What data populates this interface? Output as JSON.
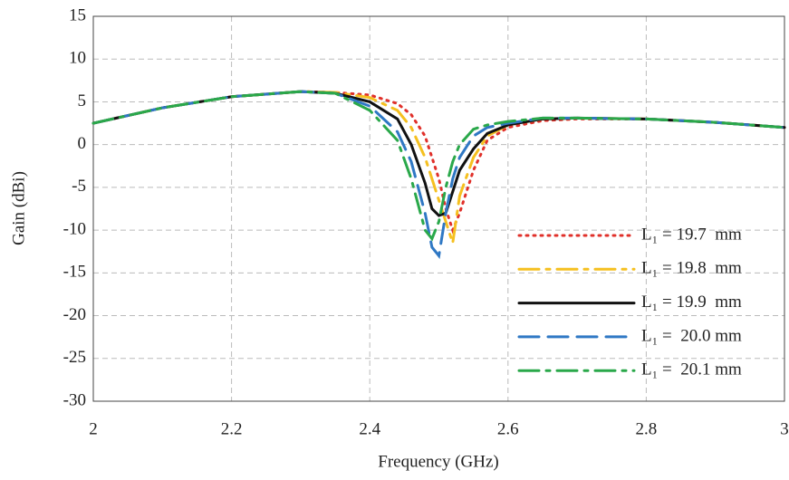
{
  "chart_data": {
    "type": "line",
    "xlabel": "Frequency (GHz)",
    "ylabel": "Gain (dBi)",
    "x": [
      2,
      2.1,
      2.2,
      2.3,
      2.35,
      2.4,
      2.44,
      2.46,
      2.48,
      2.49,
      2.5,
      2.51,
      2.52,
      2.53,
      2.55,
      2.57,
      2.6,
      2.65,
      2.7,
      2.8,
      2.9,
      3
    ],
    "series": [
      {
        "name": "L₁ = 19.7  mm",
        "color": "#e0302a",
        "style": "dotted",
        "values": [
          2.5,
          4.3,
          5.6,
          6.2,
          6.1,
          5.8,
          4.8,
          3.5,
          1,
          -1.5,
          -4,
          -7.5,
          -10,
          -8,
          -3,
          0.5,
          2.0,
          2.8,
          3.0,
          3.0,
          2.6,
          2.0
        ]
      },
      {
        "name": "L₁ = 19.8  mm",
        "color": "#f5c020",
        "style": "dashdot",
        "values": [
          2.5,
          4.3,
          5.6,
          6.2,
          6.1,
          5.5,
          4,
          2,
          -1.5,
          -4,
          -6.5,
          -9,
          -11.5,
          -6,
          -1.5,
          1,
          2.3,
          3.0,
          3.1,
          3.0,
          2.6,
          2.0
        ]
      },
      {
        "name": "L₁ = 19.9  mm",
        "color": "#111111",
        "style": "solid",
        "values": [
          2.5,
          4.3,
          5.6,
          6.2,
          6.0,
          5.0,
          3,
          0,
          -4.5,
          -7.5,
          -8.3,
          -8,
          -5.5,
          -3,
          -0.5,
          1.3,
          2.3,
          3.0,
          3.1,
          3.0,
          2.6,
          2.0
        ]
      },
      {
        "name": "L₁ =  20.0 mm",
        "color": "#2f78c4",
        "style": "dashed",
        "values": [
          2.5,
          4.3,
          5.6,
          6.2,
          6.0,
          4.5,
          1.5,
          -2,
          -8,
          -12,
          -13,
          -8,
          -4,
          -1.5,
          1,
          2,
          2.5,
          3.1,
          3.1,
          3.0,
          2.6,
          2.0
        ]
      },
      {
        "name": "L₁ =  20.1 mm",
        "color": "#2aa84a",
        "style": "dashdot",
        "values": [
          2.5,
          4.3,
          5.6,
          6.2,
          6.0,
          4,
          0.5,
          -4,
          -10,
          -11,
          -9,
          -5,
          -2,
          0,
          1.8,
          2.3,
          2.7,
          3.1,
          3.1,
          3.0,
          2.6,
          2.0
        ]
      }
    ],
    "xlim": [
      2,
      3
    ],
    "xticks": [
      2,
      2.2,
      2.4,
      2.6,
      2.8,
      3
    ],
    "ylim": [
      -30,
      15
    ],
    "yticks": [
      -30,
      -25,
      -20,
      -15,
      -10,
      -5,
      0,
      5,
      10,
      15
    ],
    "grid": true,
    "legend": "lower right"
  }
}
